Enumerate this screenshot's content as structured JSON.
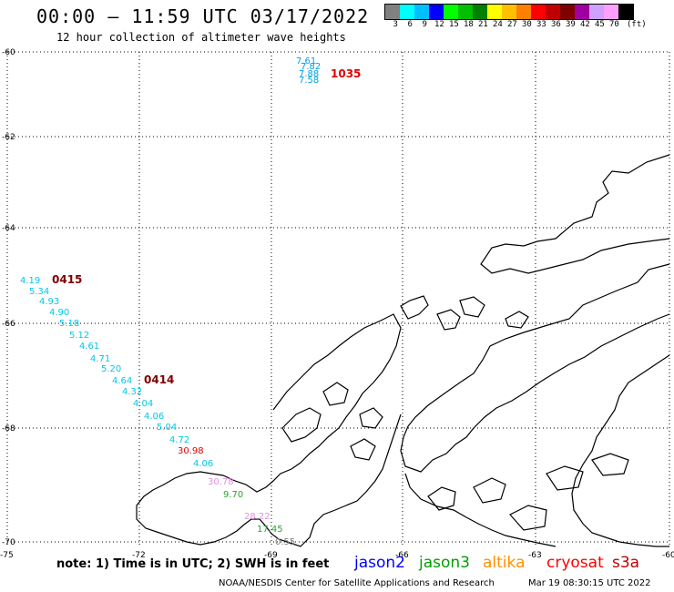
{
  "title": "00:00 – 11:59 UTC 03/17/2022",
  "subtitle": "12 hour collection of altimeter wave heights",
  "legend_scale": {
    "unit": "(ft)",
    "colors": [
      "#808080",
      "#00ffff",
      "#00bfff",
      "#0000ff",
      "#00ff00",
      "#00c000",
      "#008000",
      "#ffff00",
      "#ffc000",
      "#ff8000",
      "#ff0000",
      "#c00000",
      "#800000",
      "#a000a0",
      "#d0a0ff",
      "#ffa0ff",
      "#000000"
    ],
    "labels": [
      "3",
      "6",
      "9",
      "12",
      "15",
      "18",
      "21",
      "24",
      "27",
      "30",
      "33",
      "36",
      "39",
      "42",
      "45",
      "70"
    ]
  },
  "axes": {
    "lat_labels": [
      "-60",
      "-62",
      "-64",
      "-66",
      "-68",
      "-70"
    ],
    "lon_labels": [
      "-75",
      "-72",
      "-69",
      "-66",
      "-63",
      "-60"
    ]
  },
  "observations": [
    {
      "text": "7.61",
      "color": "#00a0e0"
    },
    {
      "text": "7.82",
      "color": "#00a0e0"
    },
    {
      "text": "7.88",
      "color": "#00a0e0"
    },
    {
      "text": "7.58",
      "color": "#00a0e0"
    },
    {
      "text": "1035",
      "color": "#e00000",
      "time": true
    },
    {
      "text": "4.19",
      "color": "#00c8e8"
    },
    {
      "text": "0415",
      "color": "#800000",
      "time": true
    },
    {
      "text": "5.34",
      "color": "#00c8e8"
    },
    {
      "text": "4.93",
      "color": "#00c8e8"
    },
    {
      "text": "4.90",
      "color": "#00c8e8"
    },
    {
      "text": "5.18",
      "color": "#00c8e8"
    },
    {
      "text": "5.12",
      "color": "#00c8e8"
    },
    {
      "text": "4.61",
      "color": "#00c8e8"
    },
    {
      "text": "4.71",
      "color": "#00c8e8"
    },
    {
      "text": "5.20",
      "color": "#00c8e8"
    },
    {
      "text": "4.64",
      "color": "#00c8e8"
    },
    {
      "text": "0414",
      "color": "#800000",
      "time": true
    },
    {
      "text": "4.32",
      "color": "#00c8e8"
    },
    {
      "text": "4.04",
      "color": "#00c8e8"
    },
    {
      "text": "4.06",
      "color": "#00c8e8"
    },
    {
      "text": "5.04",
      "color": "#00c8e8"
    },
    {
      "text": "4.72",
      "color": "#00c8e8"
    },
    {
      "text": "30.98",
      "color": "#e00000"
    },
    {
      "text": "4.06",
      "color": "#00c8e8"
    },
    {
      "text": "30.78",
      "color": "#e090e0"
    },
    {
      "text": "9.70",
      "color": "#30a030"
    },
    {
      "text": "28.22",
      "color": "#e090e0"
    },
    {
      "text": "17.45",
      "color": "#30a030"
    },
    {
      "text": "0.55",
      "color": "#808080"
    }
  ],
  "note": "note: 1) Time is in UTC; 2) SWH is in feet",
  "satellites": [
    {
      "name": "jason2",
      "color": "#0000ff"
    },
    {
      "name": "jason3",
      "color": "#00a000"
    },
    {
      "name": "altika",
      "color": "#ff9000"
    },
    {
      "name": "cryosat",
      "color": "#ff0000"
    },
    {
      "name": "s3a",
      "color": "#c00000"
    }
  ],
  "credit": "NOAA/NESDIS Center for Satellite Applications and Research",
  "credit_time": "Mar 19 08:30:15 UTC 2022"
}
